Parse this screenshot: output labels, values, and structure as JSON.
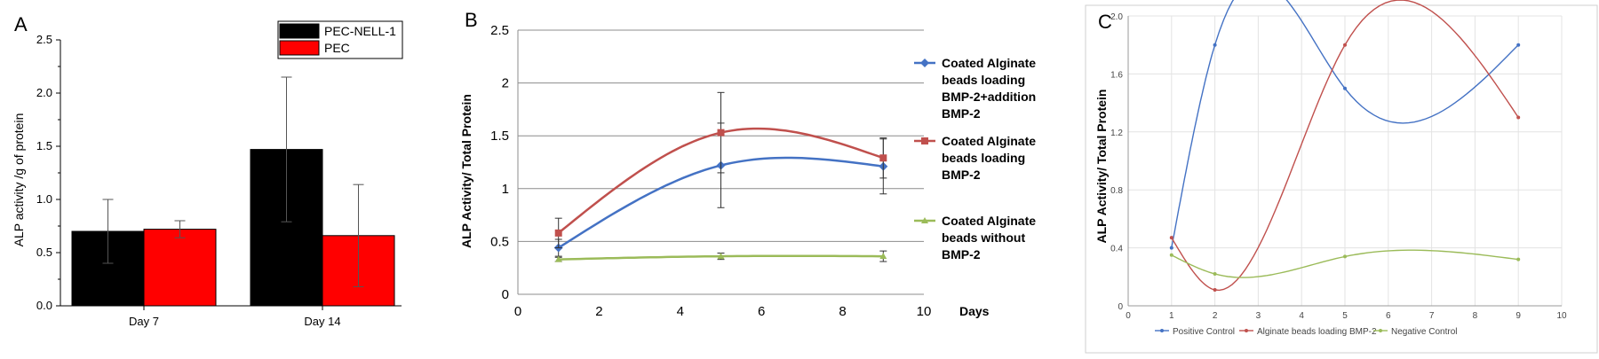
{
  "colors": {
    "pec_nell1": "#000000",
    "pec": "#ff0000",
    "blue": "#4472c4",
    "red": "#c0504d",
    "green": "#9bbb59"
  },
  "chart_data": [
    {
      "panel": "A",
      "type": "bar",
      "ylabel": "ALP activity /g of protein",
      "categories": [
        "Day 7",
        "Day 14"
      ],
      "ylim": [
        0,
        2.5
      ],
      "yticks": [
        "0.0",
        "0.5",
        "1.0",
        "1.5",
        "2.0",
        "2.5"
      ],
      "legend_position": "top-right",
      "series": [
        {
          "name": "PEC-NELL-1",
          "values": [
            0.7,
            1.47
          ],
          "errors": [
            0.3,
            0.68
          ]
        },
        {
          "name": "PEC",
          "values": [
            0.72,
            0.66
          ],
          "errors": [
            0.08,
            0.48
          ]
        }
      ]
    },
    {
      "panel": "B",
      "type": "line",
      "ylabel": "ALP Activity/ Total Protein",
      "xlabel": "Days",
      "xlim": [
        0,
        10
      ],
      "ylim": [
        0,
        2.5
      ],
      "xticks": [
        "0",
        "2",
        "4",
        "6",
        "8",
        "10"
      ],
      "yticks": [
        "0",
        "0.5",
        "1",
        "1.5",
        "2",
        "2.5"
      ],
      "grid": "horizontal",
      "legend_position": "right",
      "series": [
        {
          "name": "Coated Alginate beads loading BMP-2+addition BMP-2",
          "x": [
            1,
            5,
            9
          ],
          "y": [
            0.44,
            1.22,
            1.21
          ],
          "errors": [
            0.08,
            0.4,
            0.26
          ]
        },
        {
          "name": "Coated Alginate beads loading BMP-2",
          "x": [
            1,
            5,
            9
          ],
          "y": [
            0.58,
            1.53,
            1.29
          ],
          "errors": [
            0.14,
            0.38,
            0.19
          ]
        },
        {
          "name": "Coated Alginate beads without BMP-2",
          "x": [
            1,
            5,
            9
          ],
          "y": [
            0.33,
            0.36,
            0.36
          ],
          "errors": [
            0.02,
            0.03,
            0.05
          ]
        }
      ]
    },
    {
      "panel": "C",
      "type": "line",
      "ylabel": "ALP Activity/ Total Protein",
      "xlim": [
        0,
        10
      ],
      "ylim": [
        0,
        2.0
      ],
      "xticks": [
        "0",
        "1",
        "2",
        "3",
        "4",
        "5",
        "6",
        "7",
        "8",
        "9",
        "10"
      ],
      "yticks": [
        "0",
        "0.4",
        "0.8",
        "1.2",
        "1.6",
        "2.0"
      ],
      "grid": "both",
      "legend_position": "bottom",
      "series": [
        {
          "name": "Positive Control",
          "x": [
            1,
            2,
            5,
            9
          ],
          "y": [
            0.4,
            1.8,
            1.5,
            1.8
          ]
        },
        {
          "name": "Alginate beads loading BMP-2",
          "x": [
            1,
            2,
            5,
            9
          ],
          "y": [
            0.47,
            0.11,
            1.8,
            1.3
          ]
        },
        {
          "name": "Negative Control",
          "x": [
            1,
            2,
            5,
            9
          ],
          "y": [
            0.35,
            0.22,
            0.34,
            0.32
          ]
        }
      ]
    }
  ],
  "panels": {
    "a": "A",
    "b": "B",
    "c": "C"
  }
}
